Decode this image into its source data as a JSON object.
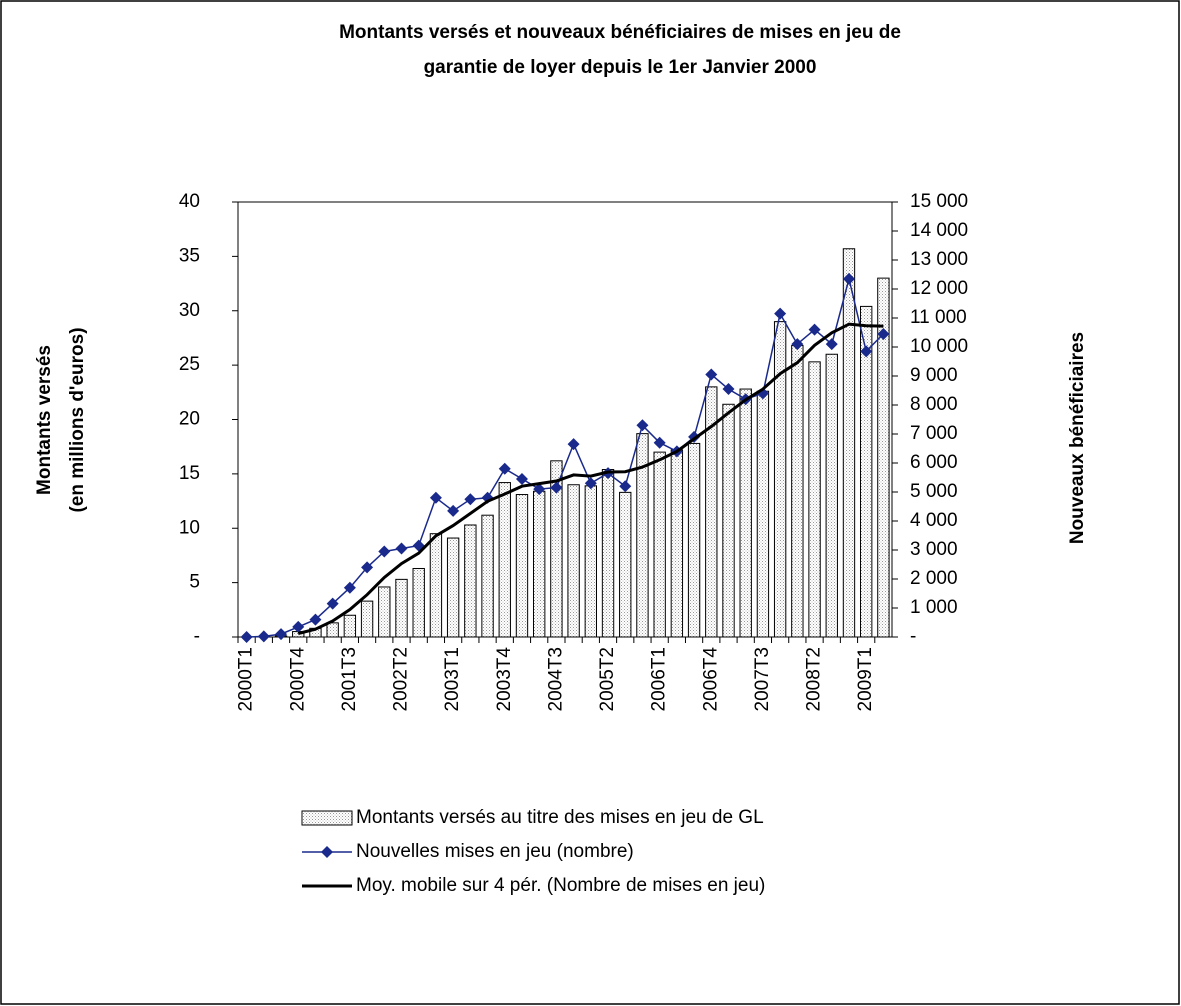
{
  "chart_data": {
    "type": "combo",
    "title": [
      "Montants versés et nouveaux bénéficiaires de mises en jeu de",
      "garantie de loyer depuis le 1er Janvier 2000"
    ],
    "ylabel": [
      "Montants versés",
      "(en millions d'euros)"
    ],
    "y2label": "Nouveaux bénéficiaires",
    "categories": [
      "2000T1",
      null,
      null,
      "2000T4",
      null,
      null,
      "2001T3",
      null,
      null,
      "2002T2",
      null,
      null,
      "2003T1",
      null,
      null,
      "2003T4",
      null,
      null,
      "2004T3",
      null,
      null,
      "2005T2",
      null,
      null,
      "2006T1",
      null,
      null,
      "2006T4",
      null,
      null,
      "2007T3",
      null,
      null,
      "2008T2",
      null,
      null,
      "2009T1",
      null
    ],
    "ylim": [
      0,
      40
    ],
    "yticks": [
      {
        "value": 0,
        "label": "-"
      },
      5,
      10,
      15,
      20,
      25,
      30,
      35,
      40
    ],
    "y2lim": [
      0,
      15000
    ],
    "y2ticks": [
      {
        "value": 0,
        "label": "-"
      },
      {
        "value": 1000,
        "label": "1 000"
      },
      {
        "value": 2000,
        "label": "2 000"
      },
      {
        "value": 3000,
        "label": "3 000"
      },
      {
        "value": 4000,
        "label": "4 000"
      },
      {
        "value": 5000,
        "label": "5 000"
      },
      {
        "value": 6000,
        "label": "6 000"
      },
      {
        "value": 7000,
        "label": "7 000"
      },
      {
        "value": 8000,
        "label": "8 000"
      },
      {
        "value": 9000,
        "label": "9 000"
      },
      {
        "value": 10000,
        "label": "10 000"
      },
      {
        "value": 11000,
        "label": "11 000"
      },
      {
        "value": 12000,
        "label": "12 000"
      },
      {
        "value": 13000,
        "label": "13 000"
      },
      {
        "value": 14000,
        "label": "14 000"
      },
      {
        "value": 15000,
        "label": "15 000"
      }
    ],
    "series": [
      {
        "name": "Montants versés au titre des mises en jeu de GL",
        "type": "bar",
        "axis": "y",
        "color": "#d8d8d8",
        "values": [
          0,
          0,
          0.1,
          0.5,
          0.8,
          1.3,
          2.0,
          3.3,
          4.6,
          5.3,
          6.3,
          9.5,
          9.1,
          10.3,
          11.2,
          14.2,
          13.1,
          13.4,
          16.2,
          14.0,
          13.9,
          15.4,
          13.3,
          18.7,
          17.0,
          17.2,
          17.8,
          23.0,
          21.4,
          22.8,
          22.6,
          29.0,
          26.8,
          25.3,
          26.0,
          35.7,
          30.4,
          33.0
        ]
      },
      {
        "name": "Nouvelles mises en jeu (nombre)",
        "type": "line",
        "marker": "diamond",
        "axis": "y2",
        "color": "#1a2a8c",
        "values": [
          0,
          20,
          100,
          350,
          600,
          1150,
          1700,
          2400,
          2950,
          3050,
          3150,
          4800,
          4350,
          4750,
          4800,
          5800,
          5450,
          5100,
          5150,
          6650,
          5300,
          5650,
          5200,
          7300,
          6700,
          6400,
          6900,
          9050,
          8550,
          8200,
          8400,
          11150,
          10100,
          10600,
          10100,
          12350,
          9850,
          10450
        ]
      },
      {
        "name": "Moy. mobile sur 4 pér. (Nombre de mises en jeu)",
        "type": "line",
        "axis": "y2",
        "color": "#000000",
        "values": [
          null,
          null,
          null,
          120,
          270,
          550,
          950,
          1460,
          2050,
          2530,
          2890,
          3490,
          3840,
          4260,
          4680,
          4930,
          5200,
          5290,
          5380,
          5590,
          5550,
          5690,
          5700,
          5860,
          6110,
          6400,
          6830,
          7260,
          7730,
          8180,
          8550,
          9080,
          9460,
          10060,
          10490,
          10790,
          10730,
          10720
        ]
      }
    ]
  }
}
